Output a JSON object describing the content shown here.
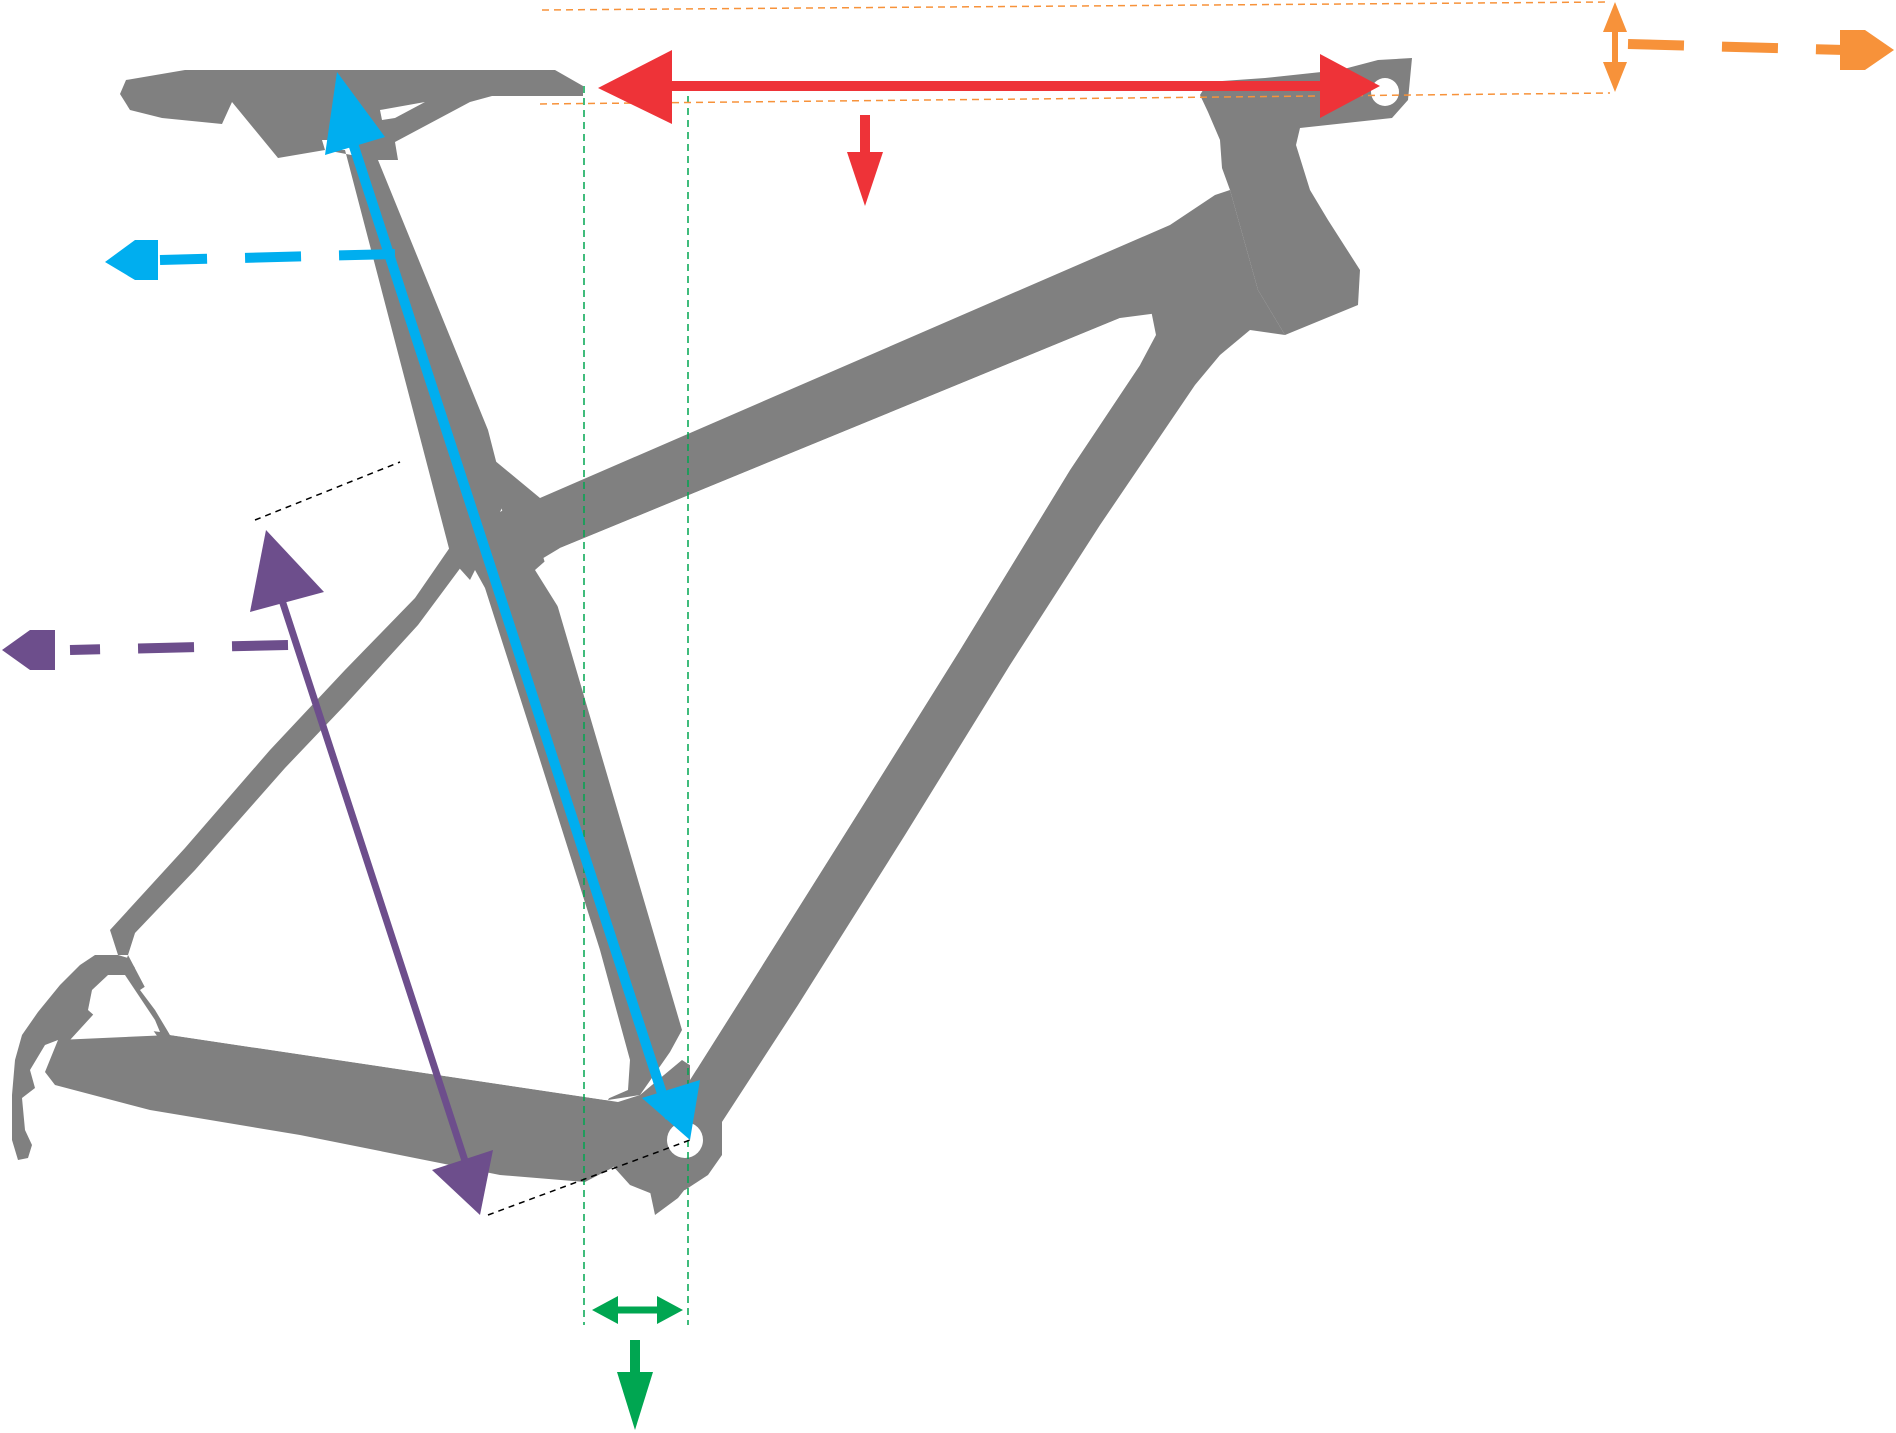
{
  "diagram": {
    "subject": "bicycle-frame-geometry",
    "colors": {
      "frame": "#808080",
      "frame_hole": "#ffffff",
      "stack_measure": "#ee3338",
      "seat_tube_measure": "#00aeef",
      "seat_tube_ct_measure": "#6d4e8c",
      "bb_offset_measure": "#00a651",
      "headtube_measure": "#f7923a",
      "guide_line": "#000000"
    },
    "measurements": [
      {
        "id": "top-reach",
        "color": "#ee3338",
        "icon": "double-arrow-horizontal"
      },
      {
        "id": "seat-tube-length",
        "color": "#00aeef",
        "icon": "double-arrow-diagonal"
      },
      {
        "id": "seat-tube-center-top",
        "color": "#6d4e8c",
        "icon": "double-arrow-diagonal"
      },
      {
        "id": "bottom-bracket-offset",
        "color": "#00a651",
        "icon": "double-arrow-horizontal"
      },
      {
        "id": "head-tube-height",
        "color": "#f7923a",
        "icon": "double-arrow-vertical"
      }
    ]
  }
}
